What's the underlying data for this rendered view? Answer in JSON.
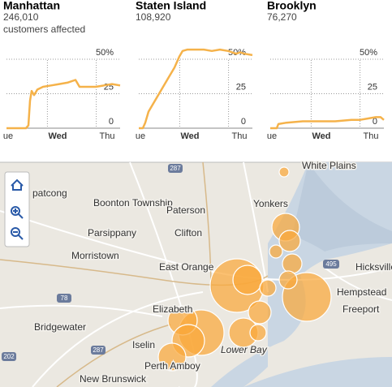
{
  "chart_data": [
    {
      "type": "line",
      "title": "Manhattan",
      "subtitle": "246,010",
      "note": "customers affected",
      "color": "#f5b24a",
      "x": [
        0,
        10,
        20,
        24,
        27,
        29,
        31,
        34,
        38,
        45,
        55,
        65,
        75,
        85,
        87,
        90,
        100,
        110,
        120,
        130,
        140
      ],
      "values": [
        0,
        0,
        0,
        0,
        2,
        20,
        27,
        24,
        28,
        30,
        31,
        32,
        33,
        35,
        33,
        30,
        30,
        30,
        31,
        32,
        31
      ],
      "xlim": [
        0,
        140
      ],
      "ylim": [
        0,
        60
      ],
      "xticks": [
        {
          "value": 2,
          "label": "ue"
        },
        {
          "value": 63,
          "label": "Wed"
        },
        {
          "value": 124,
          "label": "Thu"
        }
      ],
      "yticks": [
        0,
        25,
        {
          "value": 50,
          "label": "50%"
        }
      ]
    },
    {
      "type": "line",
      "title": "Staten Island",
      "subtitle": "108,920",
      "color": "#f5b24a",
      "x": [
        0,
        5,
        8,
        12,
        20,
        28,
        36,
        44,
        50,
        54,
        60,
        70,
        80,
        90,
        100,
        110,
        120,
        125,
        130,
        140
      ],
      "values": [
        0,
        0,
        4,
        12,
        20,
        28,
        36,
        44,
        52,
        56,
        57,
        57,
        57,
        56,
        57,
        56,
        54,
        55,
        54,
        53
      ],
      "xlim": [
        0,
        140
      ],
      "ylim": [
        0,
        60
      ],
      "xticks": [
        {
          "value": 2,
          "label": "ue"
        },
        {
          "value": 63,
          "label": "Wed"
        },
        {
          "value": 124,
          "label": "Thu"
        }
      ],
      "yticks": [
        0,
        25,
        {
          "value": 50,
          "label": "50%"
        }
      ]
    },
    {
      "type": "line",
      "title": "Brooklyn",
      "subtitle": "76,270",
      "color": "#f5b24a",
      "x": [
        0,
        8,
        10,
        20,
        40,
        60,
        80,
        100,
        110,
        120,
        130,
        136,
        140
      ],
      "values": [
        0,
        0,
        3,
        4,
        5,
        5,
        5,
        6,
        6,
        7,
        8,
        8,
        6
      ],
      "xlim": [
        0,
        140
      ],
      "ylim": [
        0,
        60
      ],
      "xticks": [
        {
          "value": 2,
          "label": "ue"
        },
        {
          "value": 63,
          "label": "Wed"
        },
        {
          "value": 124,
          "label": "Thu"
        }
      ],
      "yticks": [
        0,
        25,
        {
          "value": 50,
          "label": "50%"
        }
      ]
    }
  ],
  "map": {
    "places": [
      "Boonton Township",
      "Paterson",
      "Yonkers",
      "White Plains",
      "Parsippany",
      "Clifton",
      "Morristown",
      "East Orange",
      "Hicksville",
      "Hempstead",
      "Freeport",
      "Elizabeth",
      "Bridgewater",
      "Iselin",
      "Perth Amboy",
      "New Brunswick",
      "Lower Bay",
      "patcong"
    ],
    "shields": [
      "287",
      "495",
      "78",
      "287",
      "202"
    ]
  }
}
